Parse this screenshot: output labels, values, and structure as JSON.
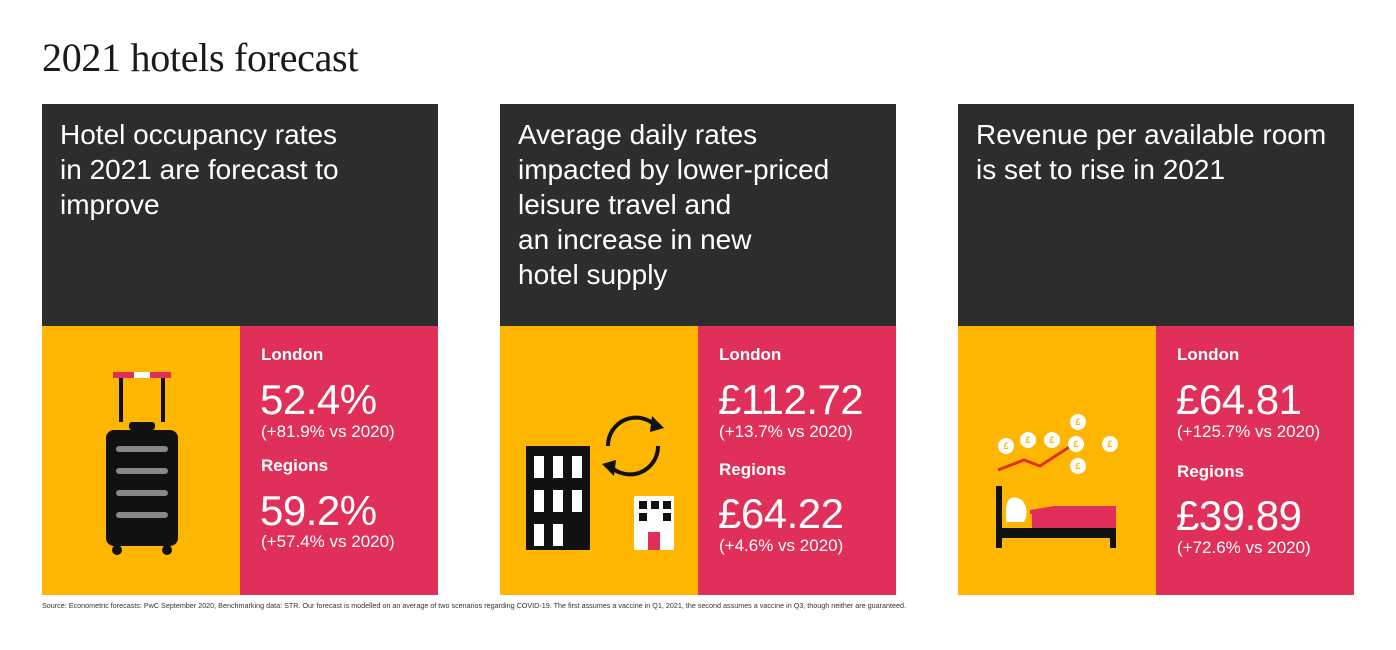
{
  "title": "2021 hotels forecast",
  "panels": [
    {
      "heading": "Hotel occupancy rates\nin 2021 are forecast to\nimprove",
      "icon": "suitcase-icon",
      "london_label": "London",
      "london_value": "52.4%",
      "london_change": "(+81.9% vs 2020)",
      "regions_label": "Regions",
      "regions_value": "59.2%",
      "regions_change": "(+57.4% vs 2020)"
    },
    {
      "heading": "Average daily rates\nimpacted by lower-priced\nleisure travel and\nan increase in new\nhotel supply",
      "icon": "buildings-cycle-icon",
      "london_label": "London",
      "london_value": "£112.72",
      "london_change": "(+13.7% vs 2020)",
      "regions_label": "Regions",
      "regions_value": "£64.22",
      "regions_change": "(+4.6% vs 2020)"
    },
    {
      "heading": "Revenue per available room\nis set to rise in 2021",
      "icon": "bed-coins-icon",
      "london_label": "London",
      "london_value": "£64.81",
      "london_change": "(+125.7% vs 2020)",
      "regions_label": "Regions",
      "regions_value": "£39.89",
      "regions_change": "(+72.6% vs 2020)"
    }
  ],
  "coin_symbol": "£",
  "source": "Source: Econometric forecasts: PwC September 2020, Benchmarking data: STR. Our forecast is modelled on an average of two scenarios regarding COVID-19. The first assumes a vaccine in Q1, 2021, the second assumes a vaccine in Q3, though neither are guaranteed.",
  "colors": {
    "dark": "#2d2d2d",
    "yellow": "#ffb600",
    "pink": "#e0305a",
    "red": "#e0301e",
    "black": "#111111"
  }
}
